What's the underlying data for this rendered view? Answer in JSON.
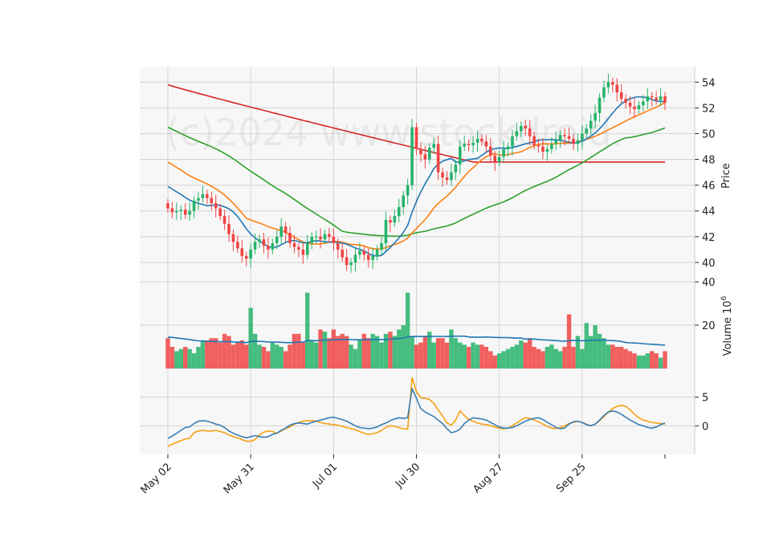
{
  "chart_data": {
    "type": "candlestick",
    "watermark": "(c)2024 www.stockdroid.",
    "x_ticks": [
      "May 02",
      "May 31",
      "Jul 01",
      "Jul 30",
      "Aug 27",
      "Sep 25"
    ],
    "price_axis": {
      "label": "Price",
      "ticks": [
        "40",
        "42",
        "44",
        "46",
        "48",
        "50",
        "52",
        "54"
      ],
      "range": [
        38.5,
        55.2
      ]
    },
    "volume_axis": {
      "label": "Volume",
      "exponent": "6",
      "ticks": [
        "20",
        "40"
      ],
      "range": [
        0,
        40
      ]
    },
    "osc_axis": {
      "ticks": [
        "0",
        "5"
      ],
      "range": [
        -5,
        10
      ]
    },
    "colors": {
      "up": "#26b36a",
      "down": "#f04444",
      "ma_short": "#1f77b4",
      "ma_mid": "#ff7f0e",
      "ma_long": "#2ca02c",
      "ma_200": "#d62728",
      "macd": "#3a7fb5",
      "signal": "#f5a00f",
      "vol_ma": "#1f77b4",
      "panel_bg": "#f7f7f7",
      "grid": "#d4d4d4"
    },
    "closes": [
      44.2,
      43.9,
      44.0,
      44.1,
      43.7,
      44.0,
      44.8,
      45.0,
      45.3,
      45.0,
      44.6,
      44.2,
      43.6,
      43.0,
      42.2,
      41.6,
      41.1,
      40.5,
      40.3,
      41.0,
      41.6,
      41.8,
      41.3,
      41.0,
      41.5,
      42.0,
      42.8,
      42.3,
      41.5,
      41.2,
      41.0,
      40.6,
      41.5,
      42.0,
      42.0,
      41.8,
      42.2,
      42.0,
      41.5,
      41.0,
      40.4,
      39.8,
      40.0,
      40.6,
      40.9,
      40.6,
      40.2,
      40.5,
      41.0,
      41.5,
      43.3,
      43.1,
      43.6,
      44.3,
      45.2,
      46.0,
      50.5,
      48.8,
      48.4,
      48.0,
      48.9,
      49.2,
      47.0,
      46.6,
      46.4,
      47.0,
      47.6,
      49.0,
      49.2,
      49.1,
      49.3,
      49.6,
      49.4,
      49.0,
      48.3,
      47.8,
      48.2,
      48.8,
      49.0,
      49.8,
      50.2,
      50.6,
      50.4,
      49.8,
      49.1,
      49.0,
      48.6,
      48.8,
      49.2,
      49.5,
      49.9,
      49.8,
      49.6,
      49.2,
      49.5,
      50.0,
      50.4,
      51.0,
      51.6,
      52.8,
      53.6,
      54.0,
      53.8,
      53.2,
      52.7,
      52.4,
      52.1,
      51.9,
      52.2,
      52.5,
      52.9,
      52.8,
      52.6,
      52.9,
      52.4
    ],
    "volumes": [
      14,
      10,
      8,
      9,
      10,
      9,
      7,
      10,
      13,
      13,
      14,
      14,
      12,
      16,
      15,
      11,
      12,
      13,
      11,
      28,
      16,
      11,
      10,
      8,
      12,
      11,
      10,
      8,
      11,
      16,
      16,
      12,
      35,
      13,
      12,
      18,
      17,
      14,
      18,
      15,
      16,
      15,
      11,
      9,
      13,
      16,
      14,
      16,
      15,
      12,
      16,
      17,
      15,
      18,
      20,
      35,
      15,
      11,
      12,
      15,
      17,
      12,
      14,
      14,
      12,
      18,
      14,
      12,
      11,
      10,
      12,
      11,
      11,
      10,
      8,
      6,
      7,
      8,
      9,
      10,
      11,
      13,
      12,
      14,
      10,
      9,
      8,
      10,
      11,
      9,
      8,
      10,
      25,
      10,
      15,
      9,
      21,
      15,
      20,
      16,
      14,
      11,
      11,
      10,
      10,
      9,
      8,
      7,
      6,
      6,
      7,
      8,
      7,
      5,
      8
    ],
    "macd": [
      -2.2,
      -1.8,
      -1.3,
      -0.8,
      -0.3,
      -0.2,
      0.4,
      0.8,
      0.9,
      0.8,
      0.6,
      0.3,
      0.1,
      -0.3,
      -0.9,
      -1.3,
      -1.6,
      -1.9,
      -2.1,
      -1.9,
      -1.7,
      -1.9,
      -2.0,
      -1.9,
      -1.5,
      -1.3,
      -0.8,
      -0.4,
      0.1,
      0.4,
      0.5,
      0.4,
      0.3,
      0.6,
      0.8,
      1.0,
      1.2,
      1.4,
      1.5,
      1.3,
      1.1,
      0.8,
      0.4,
      0.0,
      -0.3,
      -0.4,
      -0.5,
      -0.4,
      -0.2,
      0.2,
      0.5,
      0.9,
      1.2,
      1.4,
      1.3,
      1.4,
      6.5,
      4.8,
      3.0,
      2.4,
      2.0,
      1.6,
      1.0,
      0.4,
      -0.5,
      -1.2,
      -1.0,
      -0.6,
      0.4,
      1.0,
      1.4,
      1.3,
      1.2,
      1.0,
      0.6,
      0.2,
      -0.2,
      -0.4,
      -0.4,
      -0.3,
      0.0,
      0.4,
      0.8,
      1.1,
      1.3,
      1.4,
      1.1,
      0.6,
      0.2,
      -0.3,
      -0.5,
      -0.4,
      0.3,
      0.7,
      0.8,
      0.6,
      0.2,
      0.0,
      0.3,
      1.0,
      1.8,
      2.4,
      2.6,
      2.4,
      2.0,
      1.5,
      1.0,
      0.6,
      0.2,
      0.0,
      -0.3,
      -0.4,
      -0.2,
      0.2,
      0.5
    ],
    "signal": [
      -3.6,
      -3.2,
      -2.9,
      -2.6,
      -2.3,
      -2.2,
      -1.2,
      -0.9,
      -0.8,
      -0.9,
      -0.9,
      -0.8,
      -1.0,
      -1.2,
      -1.6,
      -1.9,
      -2.1,
      -2.4,
      -2.7,
      -2.7,
      -2.4,
      -1.6,
      -1.1,
      -0.9,
      -1.0,
      -1.3,
      -0.9,
      -0.5,
      -0.2,
      0.3,
      0.6,
      0.8,
      0.9,
      0.9,
      0.8,
      0.6,
      0.4,
      0.3,
      0.2,
      0.1,
      -0.1,
      -0.3,
      -0.5,
      -0.7,
      -1.0,
      -1.3,
      -1.5,
      -1.4,
      -1.2,
      -0.8,
      -0.3,
      0.0,
      -0.1,
      -0.3,
      -0.5,
      -0.6,
      8.4,
      6.0,
      4.9,
      4.8,
      4.6,
      3.9,
      2.8,
      1.7,
      0.5,
      0.1,
      1.0,
      2.6,
      1.8,
      1.1,
      0.8,
      0.5,
      0.3,
      0.2,
      0.0,
      -0.2,
      -0.4,
      -0.5,
      -0.4,
      0.0,
      0.5,
      1.0,
      1.4,
      1.3,
      1.0,
      0.7,
      0.3,
      -0.1,
      -0.4,
      -0.5,
      -0.3,
      0.0,
      0.4,
      0.6,
      0.8,
      0.6,
      0.3,
      0.0,
      0.3,
      0.9,
      1.6,
      2.4,
      3.0,
      3.4,
      3.6,
      3.4,
      2.8,
      2.0,
      1.4,
      1.0,
      0.8,
      0.6,
      0.5,
      0.4,
      0.3
    ]
  }
}
